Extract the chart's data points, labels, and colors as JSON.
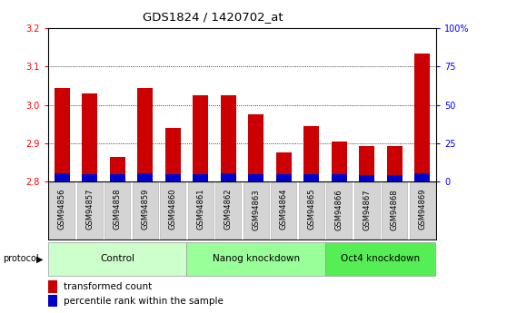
{
  "title": "GDS1824 / 1420702_at",
  "samples": [
    "GSM94856",
    "GSM94857",
    "GSM94858",
    "GSM94859",
    "GSM94860",
    "GSM94861",
    "GSM94862",
    "GSM94863",
    "GSM94864",
    "GSM94865",
    "GSM94866",
    "GSM94867",
    "GSM94868",
    "GSM94869"
  ],
  "red_values": [
    3.045,
    3.03,
    2.865,
    3.043,
    2.94,
    3.025,
    3.025,
    2.975,
    2.875,
    2.945,
    2.905,
    2.893,
    2.893,
    3.135
  ],
  "blue_values": [
    0.022,
    0.02,
    0.018,
    0.022,
    0.018,
    0.02,
    0.022,
    0.018,
    0.018,
    0.02,
    0.02,
    0.016,
    0.016,
    0.022
  ],
  "ymin": 2.8,
  "ymax": 3.2,
  "yticks": [
    2.8,
    2.9,
    3.0,
    3.1,
    3.2
  ],
  "y2ticks": [
    0,
    25,
    50,
    75,
    100
  ],
  "groups": [
    {
      "label": "Control",
      "start": 0,
      "end": 5,
      "color": "#ccffcc"
    },
    {
      "label": "Nanog knockdown",
      "start": 5,
      "end": 10,
      "color": "#99ff99"
    },
    {
      "label": "Oct4 knockdown",
      "start": 10,
      "end": 14,
      "color": "#55ee55"
    }
  ],
  "bar_width": 0.55,
  "red_color": "#cc0000",
  "blue_color": "#0000cc",
  "plot_bg": "#ffffff",
  "protocol_label": "protocol",
  "legend_red": "transformed count",
  "legend_blue": "percentile rank within the sample",
  "title_fontsize": 9.5,
  "tick_fontsize": 7,
  "group_fontsize": 7.5,
  "sample_fontsize": 6,
  "legend_fontsize": 7.5
}
